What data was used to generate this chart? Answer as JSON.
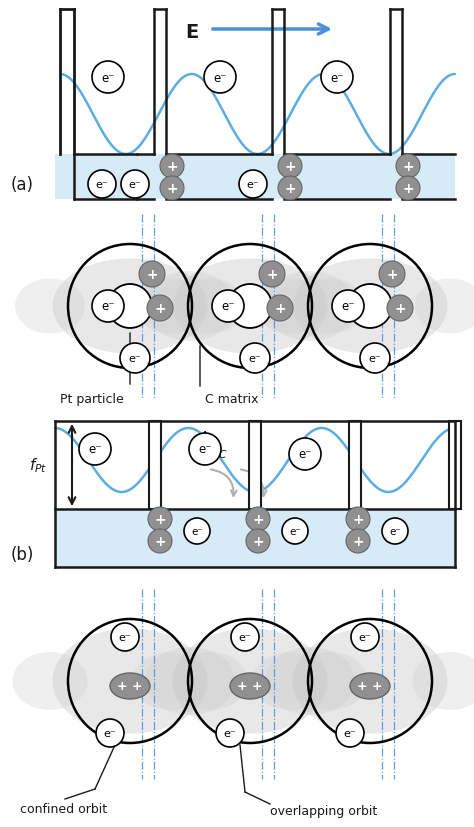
{
  "fig_width": 4.74,
  "fig_height": 8.28,
  "dpi": 100,
  "bg_color": "#ffffff",
  "light_blue_fill": "#d6eaf8",
  "blue_arrow_color": "#5dade2",
  "gray_circle_color": "#909090",
  "light_gray_ellipse": "#cccccc",
  "wall_color": "#1a1a1a",
  "wave_color": "#5dade2",
  "text_color": "#1a1a1a",
  "dashed_blue": "#4a90d9",
  "section_a_label": "(a)",
  "section_b_label": "(b)",
  "pt_particle_label": "Pt particle",
  "c_matrix_label": "C matrix",
  "confined_label": "confined orbit",
  "overlapping_label": "overlapping orbit",
  "arrow_gray": "#b0b0b0"
}
